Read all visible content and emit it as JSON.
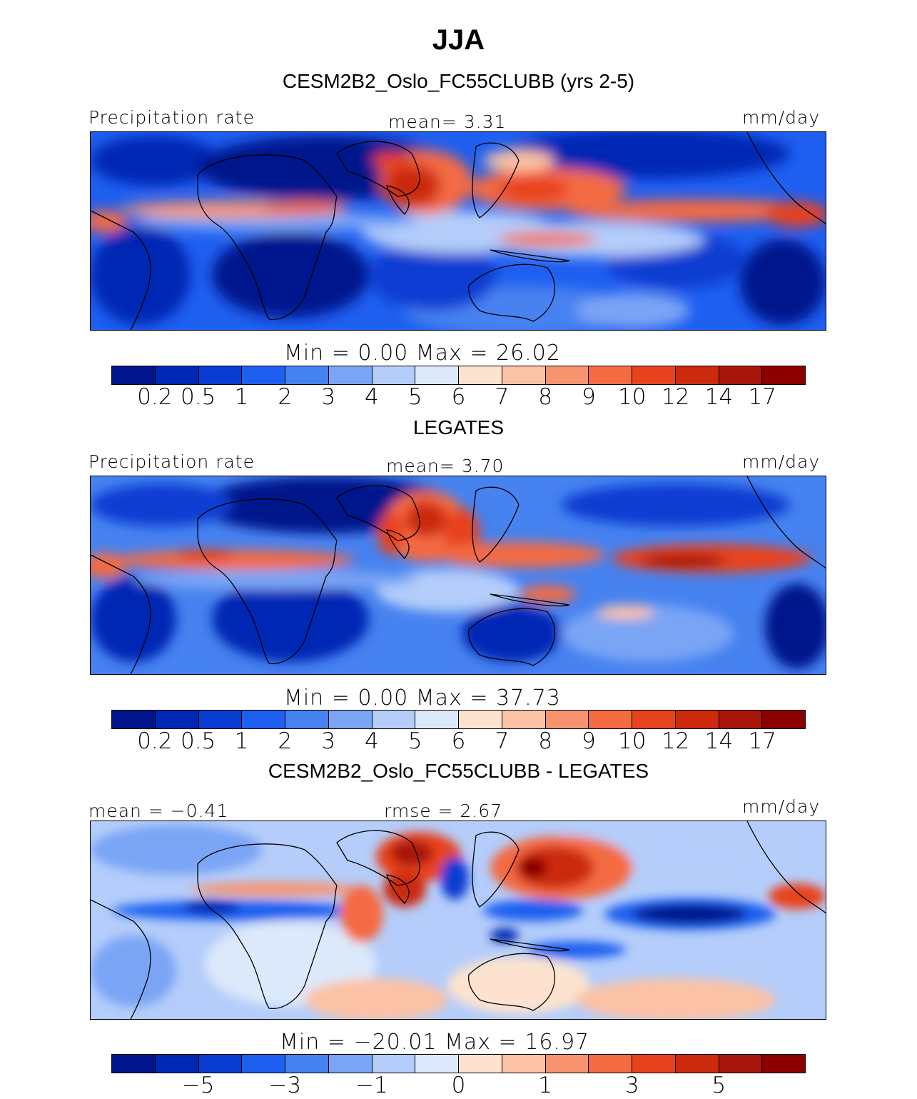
{
  "header": {
    "title": "JJA",
    "subtitle": "CESM2B2_Oslo_FC55CLUBB (yrs 2-5)"
  },
  "panels": [
    {
      "id": "model",
      "section_title": "",
      "left_label": "Precipitation rate",
      "center_label": "mean=    3.31",
      "units": "mm/day",
      "minmax": "Min  =      0.00  Max  =    26.02",
      "colorbar": {
        "colors": [
          "#00148c",
          "#0028b4",
          "#0a3cd2",
          "#1e5ff0",
          "#4682f0",
          "#7aa5f5",
          "#b4cdfa",
          "#dce9fb",
          "#fde3cf",
          "#fbc2a5",
          "#f7946f",
          "#f46b42",
          "#e8421f",
          "#cc2a0c",
          "#a8150a",
          "#8b0000"
        ],
        "ticks": [
          "0.2",
          "0.5",
          "1",
          "2",
          "3",
          "4",
          "5",
          "6",
          "7",
          "8",
          "9",
          "10",
          "12",
          "14",
          "17"
        ]
      }
    },
    {
      "id": "obs",
      "section_title": "LEGATES",
      "left_label": "Precipitation rate",
      "center_label": "mean=    3.70",
      "units": "mm/day",
      "minmax": "Min  =      0.00  Max  =    37.73",
      "colorbar": {
        "colors": [
          "#00148c",
          "#0028b4",
          "#0a3cd2",
          "#1e5ff0",
          "#4682f0",
          "#7aa5f5",
          "#b4cdfa",
          "#dce9fb",
          "#fde3cf",
          "#fbc2a5",
          "#f7946f",
          "#f46b42",
          "#e8421f",
          "#cc2a0c",
          "#a8150a",
          "#8b0000"
        ],
        "ticks": [
          "0.2",
          "0.5",
          "1",
          "2",
          "3",
          "4",
          "5",
          "6",
          "7",
          "8",
          "9",
          "10",
          "12",
          "14",
          "17"
        ]
      }
    },
    {
      "id": "diff",
      "section_title": "CESM2B2_Oslo_FC55CLUBB - LEGATES",
      "left_label": "mean =   −0.41",
      "center_label": "rmse  =     2.67",
      "units": "mm/day",
      "minmax": "Min  =  −20.01  Max  =    16.97",
      "colorbar": {
        "colors": [
          "#00148c",
          "#0028b4",
          "#0a3cd2",
          "#1e5ff0",
          "#4682f0",
          "#7aa5f5",
          "#b4cdfa",
          "#dce9fb",
          "#fde3cf",
          "#fbc2a5",
          "#f7946f",
          "#f46b42",
          "#e8421f",
          "#cc2a0c",
          "#a8150a",
          "#8b0000"
        ],
        "ticks": [
          "−5",
          "−3",
          "−1",
          "0",
          "1",
          "3",
          "5"
        ]
      }
    }
  ],
  "colors": {
    "deep_blue": "#00148c",
    "mid_blue": "#1e5ff0",
    "light_blue": "#b4cdfa",
    "pale": "#dce9fb",
    "light_red": "#fbc2a5",
    "mid_red": "#f46b42",
    "deep_red": "#8b0000"
  }
}
